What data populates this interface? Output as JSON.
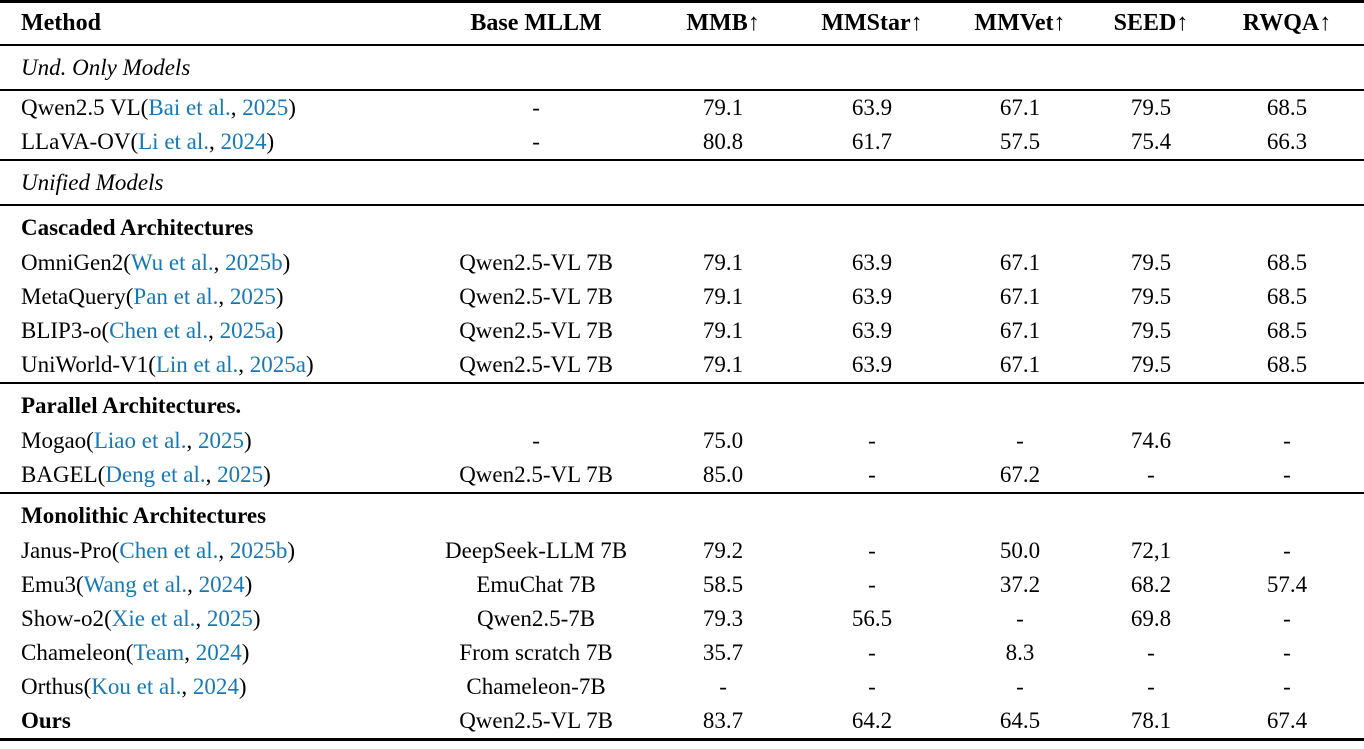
{
  "page": {
    "background_color": "#ffffff",
    "text_color": "#000000",
    "citation_color": "#1878b4"
  },
  "table": {
    "columns": [
      "Method",
      "Base MLLM",
      "MMB↑",
      "MMStar↑",
      "MMVet↑",
      "SEED↑",
      "RWQA↑"
    ],
    "punctuation": {
      "open": "(",
      "separator": ", ",
      "close": ")"
    },
    "rows": [
      {
        "type": "section",
        "label": "Und. Only Models",
        "rule_above": true
      },
      {
        "type": "data",
        "rule_above": true,
        "name": "Qwen2.5 VL",
        "cite": {
          "author": "Bai et al.",
          "year": "2025"
        },
        "base": "-",
        "values": [
          "79.1",
          "63.9",
          "67.1",
          "79.5",
          "68.5"
        ]
      },
      {
        "type": "data",
        "name": "LLaVA-OV",
        "cite": {
          "author": "Li et al.",
          "year": "2024"
        },
        "base": "-",
        "values": [
          "80.8",
          "61.7",
          "57.5",
          "75.4",
          "66.3"
        ]
      },
      {
        "type": "section",
        "label": "Unified Models",
        "rule_above": true
      },
      {
        "type": "group",
        "label": "Cascaded Architectures",
        "rule_above": true
      },
      {
        "type": "data",
        "name": "OmniGen2",
        "cite": {
          "author": "Wu et al.",
          "year": "2025b"
        },
        "base": "Qwen2.5-VL 7B",
        "values": [
          "79.1",
          "63.9",
          "67.1",
          "79.5",
          "68.5"
        ]
      },
      {
        "type": "data",
        "name": "MetaQuery",
        "cite": {
          "author": "Pan et al.",
          "year": "2025"
        },
        "base": "Qwen2.5-VL 7B",
        "values": [
          "79.1",
          "63.9",
          "67.1",
          "79.5",
          "68.5"
        ]
      },
      {
        "type": "data",
        "name": "BLIP3-o",
        "cite": {
          "author": "Chen et al.",
          "year": "2025a"
        },
        "base": "Qwen2.5-VL 7B",
        "values": [
          "79.1",
          "63.9",
          "67.1",
          "79.5",
          "68.5"
        ]
      },
      {
        "type": "data",
        "name": "UniWorld-V1",
        "cite": {
          "author": "Lin et al.",
          "year": "2025a"
        },
        "base": "Qwen2.5-VL 7B",
        "values": [
          "79.1",
          "63.9",
          "67.1",
          "79.5",
          "68.5"
        ]
      },
      {
        "type": "group",
        "label": "Parallel Architectures.",
        "rule_above": true
      },
      {
        "type": "data",
        "name": "Mogao",
        "cite": {
          "author": "Liao et al.",
          "year": "2025"
        },
        "base": "-",
        "values": [
          "75.0",
          "-",
          "-",
          "74.6",
          "-"
        ]
      },
      {
        "type": "data",
        "name": "BAGEL",
        "cite": {
          "author": "Deng et al.",
          "year": "2025"
        },
        "base": "Qwen2.5-VL 7B",
        "values": [
          "85.0",
          "-",
          "67.2",
          "-",
          "-"
        ]
      },
      {
        "type": "group",
        "label": "Monolithic Architectures",
        "rule_above": true
      },
      {
        "type": "data",
        "name": "Janus-Pro",
        "cite": {
          "author": "Chen et al.",
          "year": "2025b"
        },
        "base": "DeepSeek-LLM 7B",
        "values": [
          "79.2",
          "-",
          "50.0",
          "72,1",
          "-"
        ]
      },
      {
        "type": "data",
        "name": "Emu3",
        "cite": {
          "author": "Wang et al.",
          "year": "2024"
        },
        "base": "EmuChat 7B",
        "values": [
          "58.5",
          "-",
          "37.2",
          "68.2",
          "57.4"
        ]
      },
      {
        "type": "data",
        "name": "Show-o2",
        "cite": {
          "author": "Xie et al.",
          "year": "2025"
        },
        "base": "Qwen2.5-7B",
        "values": [
          "79.3",
          "56.5",
          "-",
          "69.8",
          "-"
        ]
      },
      {
        "type": "data",
        "name": "Chameleon",
        "cite": {
          "author": "Team",
          "year": "2024"
        },
        "base": "From scratch 7B",
        "values": [
          "35.7",
          "-",
          "8.3",
          "-",
          "-"
        ]
      },
      {
        "type": "data",
        "name": "Orthus",
        "cite": {
          "author": "Kou et al.",
          "year": "2024"
        },
        "base": "Chameleon-7B",
        "values": [
          "-",
          "-",
          "-",
          "-",
          "-"
        ]
      },
      {
        "type": "data",
        "name": "Ours",
        "bold": true,
        "base": "Qwen2.5-VL 7B",
        "values": [
          "83.7",
          "64.2",
          "64.5",
          "78.1",
          "67.4"
        ]
      }
    ]
  }
}
